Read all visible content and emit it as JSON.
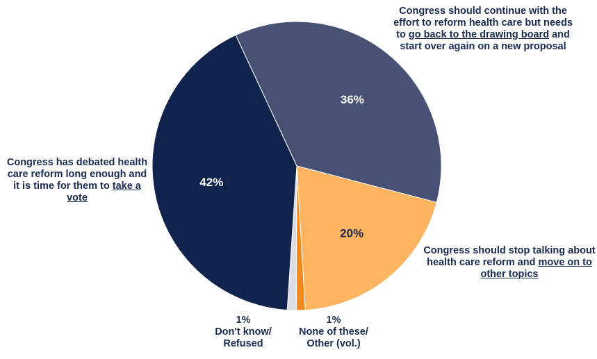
{
  "chart_data": {
    "type": "pie",
    "slices": [
      {
        "pct": 36,
        "label": "36%",
        "color": "#465174",
        "callout": {
          "pre": "Congress should continue with the effort to reform health care but needs to ",
          "underlined": "go back to the drawing board",
          "post": " and start over again on a new proposal"
        }
      },
      {
        "pct": 20,
        "label": "20%",
        "color": "#fdb460",
        "callout": {
          "pre": "Congress should stop talking about health care reform and ",
          "underlined": "move on to other topics",
          "post": ""
        }
      },
      {
        "pct": 1,
        "label": "1%",
        "color": "#f28b1f",
        "callout": {
          "line1": "None of these/",
          "line2": "Other (vol.)"
        }
      },
      {
        "pct": 1,
        "label": "1%",
        "color": "#dcdde4",
        "callout": {
          "line1": "Don't know/",
          "line2": "Refused"
        }
      },
      {
        "pct": 42,
        "label": "42%",
        "color": "#0f234d",
        "callout": {
          "pre": "Congress has debated health care reform long enough and it is time for them to ",
          "underlined": "take a vote",
          "post": ""
        }
      }
    ]
  }
}
